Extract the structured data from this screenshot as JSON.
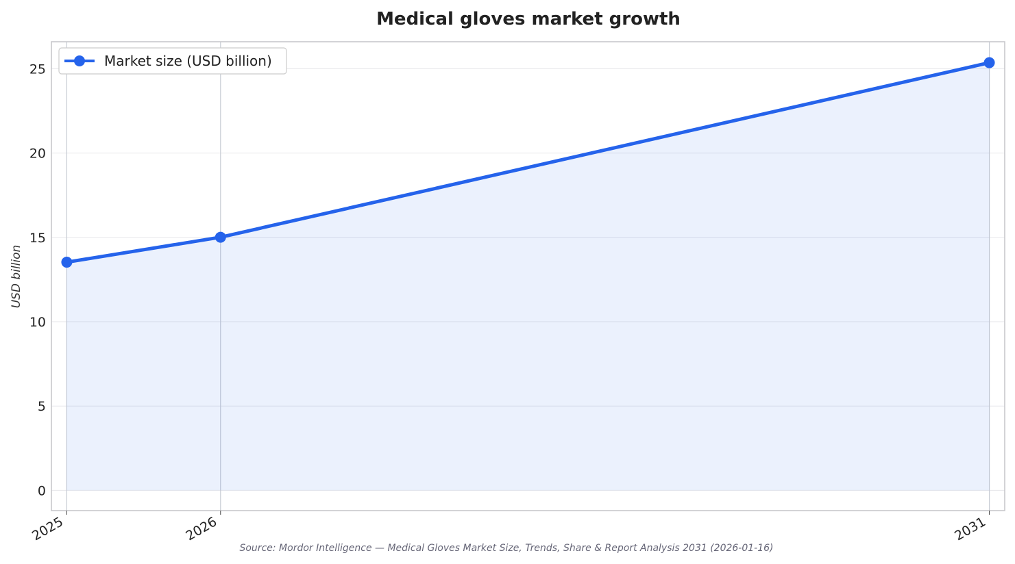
{
  "chart_data": {
    "type": "area",
    "title": "Medical gloves market growth",
    "ylabel": "USD billion",
    "xlabel": "",
    "categories": [
      "2025",
      "2026",
      "2031"
    ],
    "x": [
      2025,
      2026,
      2031
    ],
    "series": [
      {
        "name": "Market size (USD billion)",
        "values": [
          13.53,
          15.01,
          25.36
        ]
      }
    ],
    "ylim": [
      -1.2,
      26.6
    ],
    "yticks": [
      0,
      5,
      10,
      15,
      20,
      25
    ],
    "ytick_labels": [
      "0",
      "5",
      "10",
      "15",
      "20",
      "25"
    ],
    "grid": true,
    "legend_position": "top-left",
    "colors": {
      "line": "#2563eb",
      "fill": "#2563eb",
      "grid": "#e6e6ea",
      "vgrid": "#c8ccd4",
      "frame": "#c8c8cc"
    },
    "source": "Source: Mordor Intelligence — Medical Gloves Market Size, Trends, Share & Report Analysis 2031 (2026-01-16)"
  }
}
